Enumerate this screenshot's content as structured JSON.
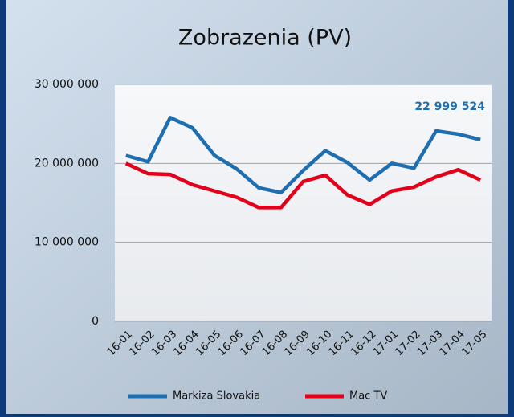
{
  "chart_data": {
    "type": "line",
    "title": "Zobrazenia (PV)",
    "categories": [
      "16-01",
      "16-02",
      "16-03",
      "16-04",
      "16-05",
      "16-06",
      "16-07",
      "16-08",
      "16-09",
      "16-10",
      "16-11",
      "16-12",
      "17-01",
      "17-02",
      "17-03",
      "17-04",
      "17-05"
    ],
    "series": [
      {
        "name": "Markiza Slovakia",
        "color": "#1f6fb0",
        "values": [
          21000000,
          20200000,
          25800000,
          24500000,
          21000000,
          19300000,
          16900000,
          16300000,
          19100000,
          21600000,
          20100000,
          17900000,
          20000000,
          19400000,
          24100000,
          23700000,
          22999524
        ],
        "value_labels": [
          null,
          null,
          null,
          null,
          null,
          null,
          null,
          null,
          null,
          null,
          null,
          null,
          null,
          null,
          null,
          null,
          "22 999 524"
        ]
      },
      {
        "name": "Mac TV",
        "color": "#e3001b",
        "values": [
          20000000,
          18700000,
          18600000,
          17300000,
          16500000,
          15700000,
          14400000,
          14400000,
          17700000,
          18500000,
          16000000,
          14800000,
          16500000,
          17000000,
          18300000,
          19200000,
          17900000
        ]
      }
    ],
    "ylim": [
      0,
      30000000
    ],
    "yticks": [
      0,
      {
        "value": 10000000,
        "label": "10 000 000"
      },
      {
        "value": 20000000,
        "label": "20 000 000"
      },
      {
        "value": 30000000,
        "label": "30 000 000"
      }
    ],
    "grid": true,
    "legend": "bottom"
  }
}
